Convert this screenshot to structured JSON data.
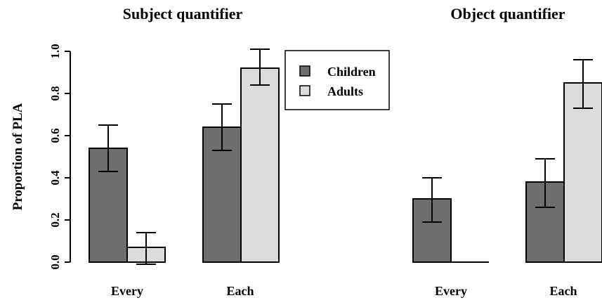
{
  "chart_data": [
    {
      "type": "bar",
      "title": "Subject quantifier",
      "ylabel": "Proportion of PLA",
      "xlabel": "",
      "ylim": [
        0,
        1.0
      ],
      "yticks": [
        "0.0",
        "0.2",
        "0.4",
        "0.6",
        "0.8",
        "1.0"
      ],
      "categories": [
        "Every",
        "Each"
      ],
      "series": [
        {
          "name": "Children",
          "color": "#6e6e6e",
          "values": [
            0.54,
            0.64
          ],
          "err_low": [
            0.43,
            0.53
          ],
          "err_high": [
            0.65,
            0.75
          ]
        },
        {
          "name": "Adults",
          "color": "#dcdcdc",
          "values": [
            0.07,
            0.92
          ],
          "err_low": [
            -0.01,
            0.84
          ],
          "err_high": [
            0.14,
            1.01
          ]
        }
      ],
      "legend": {
        "placement": "top-right",
        "entries": [
          "Children",
          "Adults"
        ]
      }
    },
    {
      "type": "bar",
      "title": "Object quantifier",
      "ylim": [
        0,
        1.0
      ],
      "categories": [
        "Every",
        "Each"
      ],
      "series": [
        {
          "name": "Children",
          "color": "#6e6e6e",
          "values": [
            0.3,
            0.38
          ],
          "err_low": [
            0.19,
            0.26
          ],
          "err_high": [
            0.4,
            0.49
          ]
        },
        {
          "name": "Adults",
          "color": "#dcdcdc",
          "values": [
            0.0,
            0.85
          ],
          "err_low": [
            null,
            0.73
          ],
          "err_high": [
            null,
            0.96
          ]
        }
      ]
    }
  ]
}
